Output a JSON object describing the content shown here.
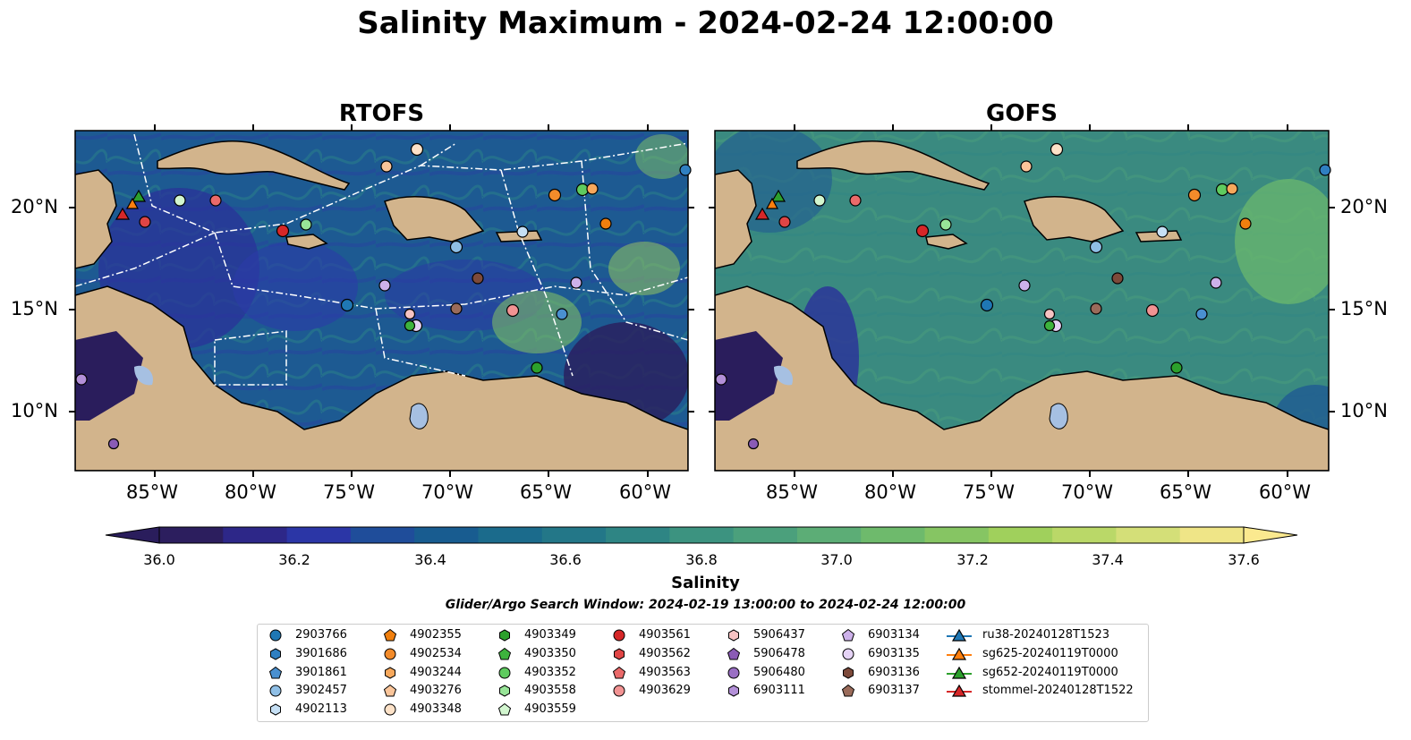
{
  "title": "Salinity Maximum - 2024-02-24 12:00:00",
  "panels": [
    {
      "title": "RTOFS"
    },
    {
      "title": "GOFS"
    }
  ],
  "lon_ticks": [
    "85°W",
    "80°W",
    "75°W",
    "70°W",
    "65°W",
    "60°W"
  ],
  "lat_ticks": [
    "20°N",
    "15°N",
    "10°N"
  ],
  "colorbar": {
    "label": "Salinity",
    "ticks": [
      "36.0",
      "36.2",
      "36.4",
      "36.6",
      "36.8",
      "37.0",
      "37.2",
      "37.4",
      "37.6"
    ],
    "colors": [
      "#2c1e5e",
      "#2d2788",
      "#2b36a6",
      "#1f4d9a",
      "#185c90",
      "#1b6b8c",
      "#237788",
      "#2e8584",
      "#3c9380",
      "#4ba07c",
      "#5cad76",
      "#6eba6c",
      "#86c563",
      "#a0d05c",
      "#bad868",
      "#d4df78",
      "#efe587"
    ],
    "min_color": "#2a1d5c",
    "max_color": "#fbe98f"
  },
  "search_window": "Glider/Argo Search Window: 2024-02-19 13:00:00 to 2024-02-24 12:00:00",
  "colors": {
    "land": "#d2b48c",
    "lake": "#a6c0e2",
    "rtofs_ocean": "#1e5a8c",
    "gofs_ocean": "#3a8a80"
  },
  "legend": [
    [
      {
        "label": "2903766",
        "marker": "circle",
        "color": "#1f77b4"
      },
      {
        "label": "3901686",
        "marker": "hexagon",
        "color": "#2f7fc1"
      },
      {
        "label": "3901861",
        "marker": "pentagon",
        "color": "#4a90d0"
      },
      {
        "label": "3902457",
        "marker": "circle",
        "color": "#8fbfe6"
      },
      {
        "label": "4902113",
        "marker": "hexagon",
        "color": "#c6e0f5"
      }
    ],
    [
      {
        "label": "4902355",
        "marker": "pentagon",
        "color": "#f07f0e"
      },
      {
        "label": "4902534",
        "marker": "circle",
        "color": "#f38b2a"
      },
      {
        "label": "4903244",
        "marker": "hexagon",
        "color": "#f7a85c"
      },
      {
        "label": "4903276",
        "marker": "pentagon",
        "color": "#fac59a"
      },
      {
        "label": "4903348",
        "marker": "circle",
        "color": "#fde2c8"
      }
    ],
    [
      {
        "label": "4903349",
        "marker": "hexagon",
        "color": "#2ca02c"
      },
      {
        "label": "4903350",
        "marker": "pentagon",
        "color": "#3db33d"
      },
      {
        "label": "4903352",
        "marker": "circle",
        "color": "#5fcb5f"
      },
      {
        "label": "4903558",
        "marker": "hexagon",
        "color": "#98e598"
      },
      {
        "label": "4903559",
        "marker": "pentagon",
        "color": "#d2f6cf"
      }
    ],
    [
      {
        "label": "4903561",
        "marker": "circle",
        "color": "#d62728"
      },
      {
        "label": "4903562",
        "marker": "hexagon",
        "color": "#e04545"
      },
      {
        "label": "4903563",
        "marker": "pentagon",
        "color": "#ea6a6a"
      },
      {
        "label": "4903629",
        "marker": "circle",
        "color": "#f29393"
      }
    ],
    [
      {
        "label": "5906437",
        "marker": "hexagon",
        "color": "#f7c3c3"
      },
      {
        "label": "5906478",
        "marker": "pentagon",
        "color": "#8a5bb5"
      },
      {
        "label": "5906480",
        "marker": "circle",
        "color": "#9a6fc4"
      },
      {
        "label": "6903111",
        "marker": "hexagon",
        "color": "#b390d8"
      }
    ],
    [
      {
        "label": "6903134",
        "marker": "pentagon",
        "color": "#cdb1ea"
      },
      {
        "label": "6903135",
        "marker": "circle",
        "color": "#e5d3f5"
      },
      {
        "label": "6903136",
        "marker": "hexagon",
        "color": "#7d4a3a"
      },
      {
        "label": "6903137",
        "marker": "pentagon",
        "color": "#9a6b5a"
      }
    ],
    [
      {
        "label": "ru38-20240128T1523",
        "marker": "triangle",
        "color": "#1f77b4"
      },
      {
        "label": "sg625-20240119T0000",
        "marker": "triangle",
        "color": "#ff7f0e"
      },
      {
        "label": "sg652-20240119T0000",
        "marker": "triangle",
        "color": "#2ca02c"
      },
      {
        "label": "stommel-20240128T1522",
        "marker": "triangle",
        "color": "#d62728"
      }
    ]
  ]
}
